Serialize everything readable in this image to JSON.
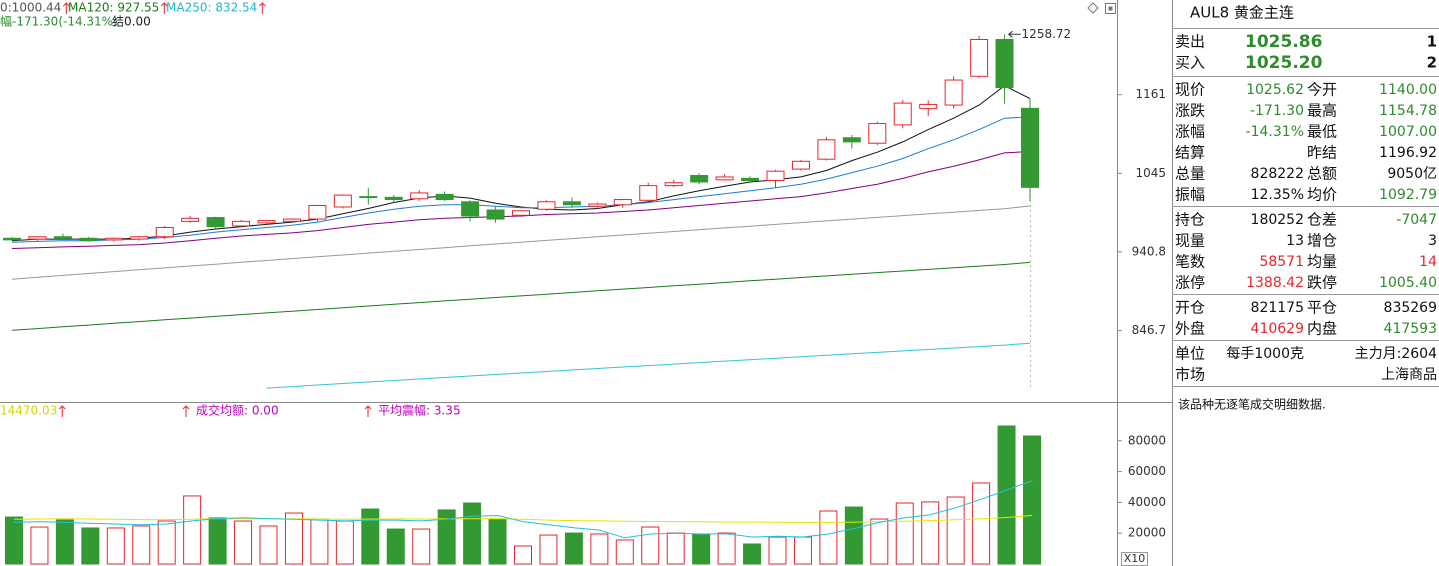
{
  "chart_data": [
    {
      "type": "candlestick",
      "log": true,
      "header": [
        {
          "text": "0:1000.44",
          "color": "#555555"
        },
        {
          "text": "MA120: 927.55",
          "color": "#1a7a1a"
        },
        {
          "text": "MA250: 832.54",
          "color": "#20b8c8"
        }
      ],
      "subheader": [
        {
          "text": "幅-171.30(-14.31%)",
          "color": "#2e8b2e"
        },
        {
          "text": "结0.00",
          "color": "#222222"
        }
      ],
      "annotation": "1258.72",
      "ylim": [
        782,
        1266
      ],
      "yticks": [
        1161,
        1045,
        940.8,
        846.7
      ],
      "up_color": "#e8262b",
      "down_color": "#339933",
      "open": [
        958,
        957,
        960,
        958,
        956,
        957,
        960,
        980,
        985,
        974,
        978,
        980,
        983,
        999,
        1013,
        1012,
        1010,
        1016,
        1006,
        995,
        988,
        996,
        1006,
        1000,
        1002,
        1008,
        1028,
        1042,
        1036,
        1038,
        1035,
        1051,
        1065,
        1096,
        1088,
        1115,
        1140,
        1145,
        1190,
        1250,
        1140
      ],
      "high": [
        960,
        960,
        964,
        960,
        959,
        961,
        974,
        987,
        986,
        982,
        982,
        984,
        1002,
        1016,
        1025,
        1015,
        1022,
        1020,
        1008,
        1000,
        995,
        1008,
        1012,
        1005,
        1010,
        1032,
        1036,
        1045,
        1044,
        1041,
        1050,
        1064,
        1097,
        1100,
        1120,
        1153,
        1152,
        1190,
        1256,
        1258.72,
        1154.78
      ],
      "low": [
        955,
        955,
        956,
        954,
        954,
        955,
        957,
        978,
        970,
        972,
        976,
        978,
        980,
        997,
        1002,
        1005,
        1007,
        1007,
        980,
        978,
        986,
        994,
        998,
        998,
        998,
        1006,
        1026,
        1030,
        1035,
        1033,
        1025,
        1049,
        1063,
        1080,
        1085,
        1110,
        1128,
        1140,
        1188,
        1147,
        1007
      ],
      "close": [
        956,
        960,
        958,
        955,
        958,
        960,
        972,
        984,
        973,
        980,
        981,
        983,
        1001,
        1015,
        1012,
        1009,
        1018,
        1009,
        987,
        983,
        994,
        1006,
        1002,
        1003,
        1009,
        1028,
        1032,
        1033,
        1040,
        1035,
        1048,
        1062,
        1093,
        1090,
        1117,
        1148,
        1146,
        1184,
        1250,
        1172,
        1025.62
      ],
      "ma_series": [
        {
          "color": "#111111",
          "values": [
            955,
            957,
            957,
            957,
            957,
            958,
            961,
            966,
            970,
            973,
            976,
            979,
            983,
            990,
            997,
            1005,
            1011,
            1014,
            1011,
            1004,
            999,
            996,
            995,
            997,
            1002,
            1006,
            1014,
            1021,
            1027,
            1033,
            1036,
            1040,
            1049,
            1063,
            1075,
            1090,
            1108,
            1125,
            1145,
            1175,
            1155
          ]
        },
        {
          "color": "#1e7bd6",
          "values": [
            953,
            954,
            955,
            955,
            956,
            957,
            959,
            962,
            966,
            969,
            972,
            975,
            979,
            985,
            991,
            996,
            1000,
            1002,
            1002,
            1000,
            998,
            998,
            999,
            1000,
            1002,
            1005,
            1009,
            1013,
            1017,
            1021,
            1025,
            1030,
            1037,
            1046,
            1055,
            1066,
            1080,
            1093,
            1108,
            1125,
            1127
          ]
        },
        {
          "color": "#800080",
          "values": [
            945,
            946,
            947,
            948,
            949,
            950,
            952,
            955,
            958,
            961,
            963,
            965,
            968,
            972,
            976,
            979,
            982,
            984,
            985,
            986,
            987,
            989,
            990,
            991,
            993,
            995,
            998,
            1001,
            1004,
            1007,
            1010,
            1013,
            1018,
            1024,
            1030,
            1038,
            1047,
            1055,
            1064,
            1074,
            1076
          ]
        },
        {
          "color": "#999999",
          "values": [
            907,
            909.3,
            911.6,
            913.9,
            916.2,
            918.5,
            920.8,
            923.1,
            925.4,
            927.7,
            930,
            932.3,
            934.6,
            936.9,
            939.2,
            941.5,
            943.8,
            946.1,
            948.4,
            950.7,
            953,
            955.3,
            957.6,
            959.9,
            962.2,
            964.5,
            966.8,
            969.1,
            971.4,
            973.7,
            976,
            978.3,
            980.6,
            982.9,
            985.2,
            987.5,
            989.8,
            992.1,
            994.4,
            996.7,
            1000.44
          ]
        },
        {
          "color": "#1a7a1a",
          "values": [
            847,
            849,
            851,
            853,
            855,
            857,
            859,
            861,
            863,
            865,
            867,
            869,
            871,
            873,
            875,
            877,
            879,
            881,
            883,
            885,
            887,
            889,
            891,
            893,
            895,
            897,
            899,
            901,
            903,
            905,
            907,
            909,
            911,
            913,
            915,
            917,
            919,
            921,
            923,
            925,
            927.55
          ]
        },
        {
          "color": "#33c5d6",
          "values": [
            null,
            null,
            null,
            null,
            null,
            null,
            null,
            null,
            null,
            null,
            784.0,
            785.6,
            787.2,
            788.8,
            790.4,
            792.0,
            793.6,
            795.2,
            796.8,
            798.4,
            800.0,
            801.6,
            803.2,
            804.8,
            806.4,
            808.0,
            809.6,
            811.2,
            812.8,
            814.4,
            816.0,
            817.6,
            819.2,
            820.8,
            822.4,
            824.0,
            825.6,
            827.2,
            828.8,
            830.4,
            832.54
          ]
        }
      ]
    },
    {
      "type": "bar",
      "header": [
        {
          "text": "14470.03",
          "color": "#d6d600"
        },
        {
          "text": "成交均额: 0.00",
          "color": "#c000c0"
        },
        {
          "text": "平均震幅: 3.35",
          "color": "#c000c0"
        }
      ],
      "unit_label": "X10",
      "ylim": [
        0,
        100000
      ],
      "yticks": [
        20000,
        40000,
        60000,
        80000
      ],
      "values": [
        30500,
        24000,
        28600,
        23400,
        23400,
        24700,
        27900,
        44200,
        29900,
        27900,
        24700,
        33100,
        29200,
        27900,
        35700,
        22700,
        22700,
        35100,
        39600,
        29200,
        11700,
        18800,
        20100,
        19500,
        15600,
        24000,
        20100,
        19500,
        20100,
        13000,
        17500,
        17500,
        34400,
        37000,
        29200,
        39600,
        40300,
        43500,
        52600,
        89600,
        83100
      ],
      "ma_series": [
        {
          "color": "#e6e600",
          "values": [
            29000,
            29200,
            29400,
            29200,
            29000,
            28800,
            28800,
            29000,
            29400,
            29500,
            29400,
            29300,
            29200,
            29100,
            29200,
            29300,
            29200,
            29300,
            29400,
            29500,
            29000,
            28500,
            28200,
            28000,
            27800,
            27600,
            27500,
            27400,
            27300,
            27200,
            27100,
            27000,
            27000,
            27200,
            27500,
            27800,
            28200,
            28700,
            29300,
            30200,
            31500
          ]
        },
        {
          "color": "#20c0e0",
          "values": [
            27000,
            27500,
            27000,
            26500,
            26000,
            25500,
            26000,
            28000,
            29500,
            30000,
            29500,
            29000,
            28500,
            28000,
            28500,
            28500,
            28000,
            29000,
            31000,
            31500,
            27500,
            25500,
            23500,
            22000,
            17000,
            19500,
            20000,
            19500,
            19700,
            17500,
            18000,
            17500,
            19500,
            23000,
            27000,
            30000,
            32000,
            36500,
            42000,
            48000,
            54000
          ]
        }
      ]
    }
  ],
  "quote": {
    "title": "AUL8 黄金主连",
    "bidask": [
      {
        "label": "卖出",
        "price": "1025.86",
        "qty": "1"
      },
      {
        "label": "买入",
        "price": "1025.20",
        "qty": "2"
      }
    ],
    "groups": [
      [
        {
          "l1": "现价",
          "v1": "1025.62",
          "c1": "#2e8b2e",
          "l2": "今开",
          "v2": "1140.00",
          "c2": "#2e8b2e"
        },
        {
          "l1": "涨跌",
          "v1": "-171.30",
          "c1": "#2e8b2e",
          "l2": "最高",
          "v2": "1154.78",
          "c2": "#2e8b2e"
        },
        {
          "l1": "涨幅",
          "v1": "-14.31%",
          "c1": "#2e8b2e",
          "l2": "最低",
          "v2": "1007.00",
          "c2": "#2e8b2e"
        },
        {
          "l1": "结算",
          "l2": "昨结",
          "v2": "1196.92"
        },
        {
          "l1": "总量",
          "v1": "828222",
          "l2": "总额",
          "v2": "9050亿"
        },
        {
          "l1": "振幅",
          "v1": "12.35%",
          "l2": "均价",
          "v2": "1092.79",
          "c2": "#2e8b2e"
        }
      ],
      [
        {
          "l1": "持仓",
          "v1": "180252",
          "l2": "仓差",
          "v2": "-7047",
          "c2": "#2e8b2e"
        },
        {
          "l1": "现量",
          "v1": "13",
          "l2": "增仓",
          "v2": "3"
        },
        {
          "l1": "笔数",
          "v1": "58571",
          "c1": "#e8262b",
          "l2": "均量",
          "v2": "14",
          "c2": "#e8262b"
        },
        {
          "l1": "涨停",
          "v1": "1388.42",
          "c1": "#e8262b",
          "l2": "跌停",
          "v2": "1005.40",
          "c2": "#2e8b2e"
        }
      ],
      [
        {
          "l1": "开仓",
          "v1": "821175",
          "l2": "平仓",
          "v2": "835269"
        },
        {
          "l1": "外盘",
          "v1": "410629",
          "c1": "#e8262b",
          "l2": "内盘",
          "v2": "417593",
          "c2": "#2e8b2e"
        }
      ],
      [
        {
          "l1": "单位",
          "v1": "每手1000克",
          "v2": "主力月:2604"
        },
        {
          "l1": "市场",
          "v2": "上海商品"
        }
      ]
    ],
    "note": "该品种无逐笔成交明细数据."
  }
}
